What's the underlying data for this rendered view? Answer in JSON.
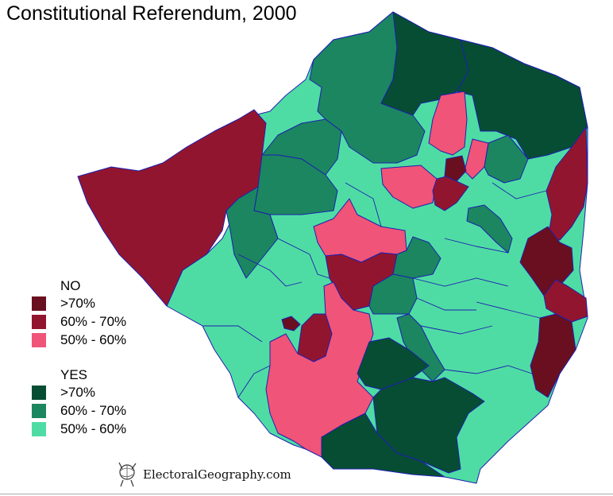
{
  "title": "Constitutional Referendum, 2000",
  "colors": {
    "no_over_70": "#6a0f1f",
    "no_60_70": "#92152f",
    "no_50_60": "#f05478",
    "yes_over_70": "#064d33",
    "yes_60_70": "#1b8660",
    "yes_50_60": "#4fdca4",
    "border": "#1f1fb0"
  },
  "legend": {
    "no": {
      "heading": "NO",
      "items": [
        {
          "label": ">70%",
          "color": "#6a0f1f"
        },
        {
          "label": "60% - 70%",
          "color": "#92152f"
        },
        {
          "label": "50% - 60%",
          "color": "#f05478"
        }
      ]
    },
    "yes": {
      "heading": "YES",
      "items": [
        {
          "label": ">70%",
          "color": "#064d33"
        },
        {
          "label": "60% - 70%",
          "color": "#1b8660"
        },
        {
          "label": "50% - 60%",
          "color": "#4fdca4"
        }
      ]
    }
  },
  "credit": {
    "text": "ElectoralGeography.com",
    "icon": "globe-figure-logo-icon"
  }
}
